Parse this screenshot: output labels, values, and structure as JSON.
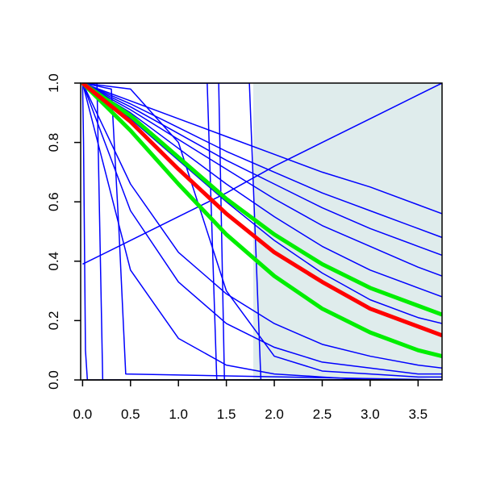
{
  "chart_data": {
    "type": "line",
    "x": [
      0,
      0.5,
      1,
      1.5,
      2,
      2.5,
      3,
      3.5,
      3.75
    ],
    "xlim": [
      -0.02,
      3.75
    ],
    "ylim": [
      0,
      1
    ],
    "xticks": [
      {
        "value": 0,
        "label": "0.0"
      },
      {
        "value": 0.5,
        "label": "0.5"
      },
      {
        "value": 1,
        "label": "1.0"
      },
      {
        "value": 1.5,
        "label": "1.5"
      },
      {
        "value": 2,
        "label": "2.0"
      },
      {
        "value": 2.5,
        "label": "2.5"
      },
      {
        "value": 3,
        "label": "3.0"
      },
      {
        "value": 3.5,
        "label": "3.5"
      }
    ],
    "yticks": [
      {
        "value": 0,
        "label": "0.0"
      },
      {
        "value": 0.2,
        "label": "0.2"
      },
      {
        "value": 0.4,
        "label": "0.4"
      },
      {
        "value": 0.6,
        "label": "0.6"
      },
      {
        "value": 0.8,
        "label": "0.8"
      },
      {
        "value": 1,
        "label": "1.0"
      }
    ],
    "shaded_region": {
      "x": [
        1.78,
        3.75
      ],
      "color": "#dfecec"
    },
    "series": [
      {
        "color": "#0000ff",
        "width": 1.5,
        "values": [
          1,
          0.94,
          0.88,
          0.82,
          0.76,
          0.7,
          0.65,
          0.59,
          0.56
        ]
      },
      {
        "color": "#0000ff",
        "width": 1.5,
        "values": [
          1,
          0.93,
          0.85,
          0.77,
          0.7,
          0.63,
          0.57,
          0.51,
          0.48
        ]
      },
      {
        "color": "#0000ff",
        "width": 1.5,
        "values": [
          1,
          0.92,
          0.83,
          0.74,
          0.66,
          0.58,
          0.51,
          0.45,
          0.42
        ]
      },
      {
        "color": "#0000ff",
        "width": 1.5,
        "values": [
          1,
          0.91,
          0.81,
          0.71,
          0.61,
          0.52,
          0.45,
          0.38,
          0.35
        ]
      },
      {
        "color": "#0000ff",
        "width": 1.5,
        "values": [
          1,
          0.9,
          0.78,
          0.66,
          0.55,
          0.45,
          0.37,
          0.31,
          0.28
        ]
      },
      {
        "color": "#0000ff",
        "width": 1.5,
        "values": [
          1,
          0.88,
          0.74,
          0.6,
          0.47,
          0.36,
          0.27,
          0.21,
          0.19
        ]
      },
      {
        "color": "#0000ff",
        "width": 1.5,
        "values": [
          0.39,
          0.47,
          0.55,
          0.63,
          0.72,
          0.8,
          0.88,
          0.96,
          1.0
        ]
      },
      {
        "color": "#0000ff",
        "width": 1.5,
        "values": [
          1,
          0.37,
          0.14,
          0.05,
          0.02,
          0.01,
          0,
          0,
          0
        ]
      },
      {
        "color": "#0000ff",
        "width": 1.5,
        "values": [
          1,
          0.57,
          0.33,
          0.19,
          0.11,
          0.06,
          0.04,
          0.02,
          0.02
        ]
      },
      {
        "color": "#0000ff",
        "width": 1.5,
        "values": [
          1,
          0.66,
          0.43,
          0.29,
          0.19,
          0.12,
          0.08,
          0.05,
          0.04
        ]
      },
      {
        "color": "#0000ff",
        "width": 1.5,
        "values": [
          1,
          0.98,
          0.8,
          0.3,
          0.08,
          0.03,
          0.02,
          0.01,
          0.01
        ]
      },
      {
        "color": "#0000ff",
        "width": 1.5,
        "x": [
          0,
          0.01,
          0.03,
          0.05,
          3.75
        ],
        "values": [
          1,
          0.8,
          0.1,
          0,
          0
        ]
      },
      {
        "color": "#0000ff",
        "width": 1.5,
        "x": [
          0,
          0.15,
          0.18,
          0.21,
          3.75
        ],
        "values": [
          1,
          1,
          0.5,
          0,
          0
        ]
      },
      {
        "color": "#0000ff",
        "width": 1.5,
        "x": [
          0,
          0.3,
          0.38,
          0.45,
          3.75
        ],
        "values": [
          1,
          0.98,
          0.5,
          0.02,
          0
        ]
      },
      {
        "color": "#0000ff",
        "width": 1.5,
        "x": [
          0,
          1.3,
          1.35,
          1.4,
          3.75
        ],
        "values": [
          1,
          1,
          0.5,
          0,
          0
        ]
      },
      {
        "color": "#0000ff",
        "width": 1.5,
        "x": [
          0,
          1.42,
          1.45,
          1.48,
          3.75
        ],
        "values": [
          1,
          1,
          0.5,
          0,
          0
        ]
      },
      {
        "color": "#0000ff",
        "width": 1.5,
        "x": [
          0,
          1.74,
          1.8,
          1.86,
          3.75
        ],
        "values": [
          1,
          1,
          0.5,
          0,
          0
        ]
      },
      {
        "color": "#00ee00",
        "width": 5,
        "values": [
          1,
          0.89,
          0.75,
          0.61,
          0.49,
          0.39,
          0.31,
          0.25,
          0.22
        ]
      },
      {
        "color": "#00ee00",
        "width": 5,
        "values": [
          1,
          0.84,
          0.66,
          0.49,
          0.35,
          0.24,
          0.16,
          0.1,
          0.08
        ]
      },
      {
        "color": "#ff0000",
        "width": 5,
        "values": [
          1,
          0.87,
          0.71,
          0.56,
          0.43,
          0.33,
          0.24,
          0.18,
          0.15
        ]
      }
    ]
  }
}
